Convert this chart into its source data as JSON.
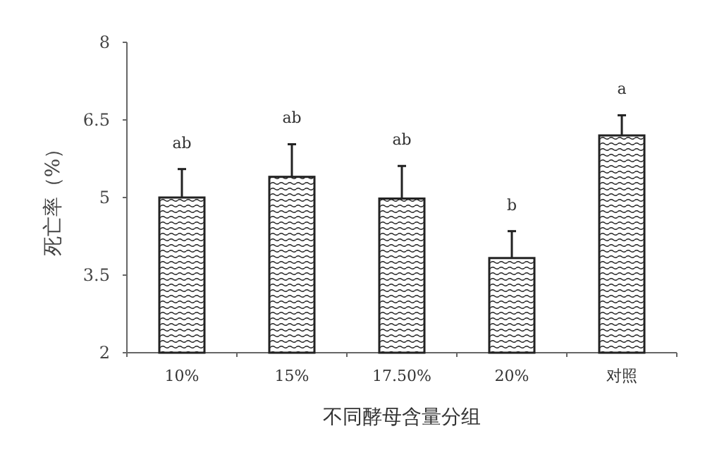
{
  "chart_data": {
    "type": "bar",
    "xlabel": "不同酵母含量分组",
    "ylabel": "死亡率（%）",
    "categories": [
      "10%",
      "15%",
      "17.50%",
      "20%",
      "对照"
    ],
    "values": [
      5.0,
      5.4,
      4.98,
      3.83,
      6.2
    ],
    "errors": [
      0.55,
      0.63,
      0.63,
      0.52,
      0.39
    ],
    "color": "#222222",
    "ylim": [
      2,
      8
    ],
    "yticks": [
      2,
      3.5,
      5,
      6.5,
      8
    ],
    "annotations": [
      "ab",
      "ab",
      "ab",
      "b",
      "a"
    ]
  }
}
